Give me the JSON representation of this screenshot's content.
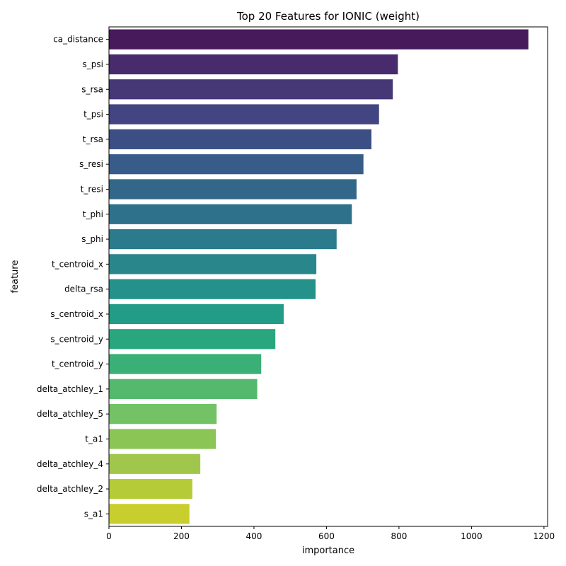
{
  "chart_data": {
    "type": "bar",
    "orientation": "horizontal",
    "title": "Top 20 Features for IONIC (weight)",
    "xlabel": "importance",
    "ylabel": "feature",
    "xlim": [
      0,
      1210
    ],
    "xticks": [
      0,
      200,
      400,
      600,
      800,
      1000,
      1200
    ],
    "grid": false,
    "categories": [
      "ca_distance",
      "s_psi",
      "s_rsa",
      "t_psi",
      "t_rsa",
      "s_resi",
      "t_resi",
      "t_phi",
      "s_phi",
      "t_centroid_x",
      "delta_rsa",
      "s_centroid_x",
      "s_centroid_y",
      "t_centroid_y",
      "delta_atchley_1",
      "delta_atchley_5",
      "t_a1",
      "delta_atchley_4",
      "delta_atchley_2",
      "s_a1"
    ],
    "values": [
      1157,
      797,
      783,
      745,
      724,
      702,
      683,
      670,
      628,
      572,
      570,
      482,
      459,
      420,
      409,
      297,
      295,
      252,
      230,
      222
    ],
    "colors": [
      "#471a5b",
      "#482b6c",
      "#463777",
      "#424581",
      "#3c4f84",
      "#385c89",
      "#33678a",
      "#2e718b",
      "#2b7b8c",
      "#29878c",
      "#24918a",
      "#229c86",
      "#2aa67e",
      "#3aaf76",
      "#54b86d",
      "#73c266",
      "#8ac556",
      "#a0c74c",
      "#b6cb38",
      "#c9ce2f"
    ]
  }
}
